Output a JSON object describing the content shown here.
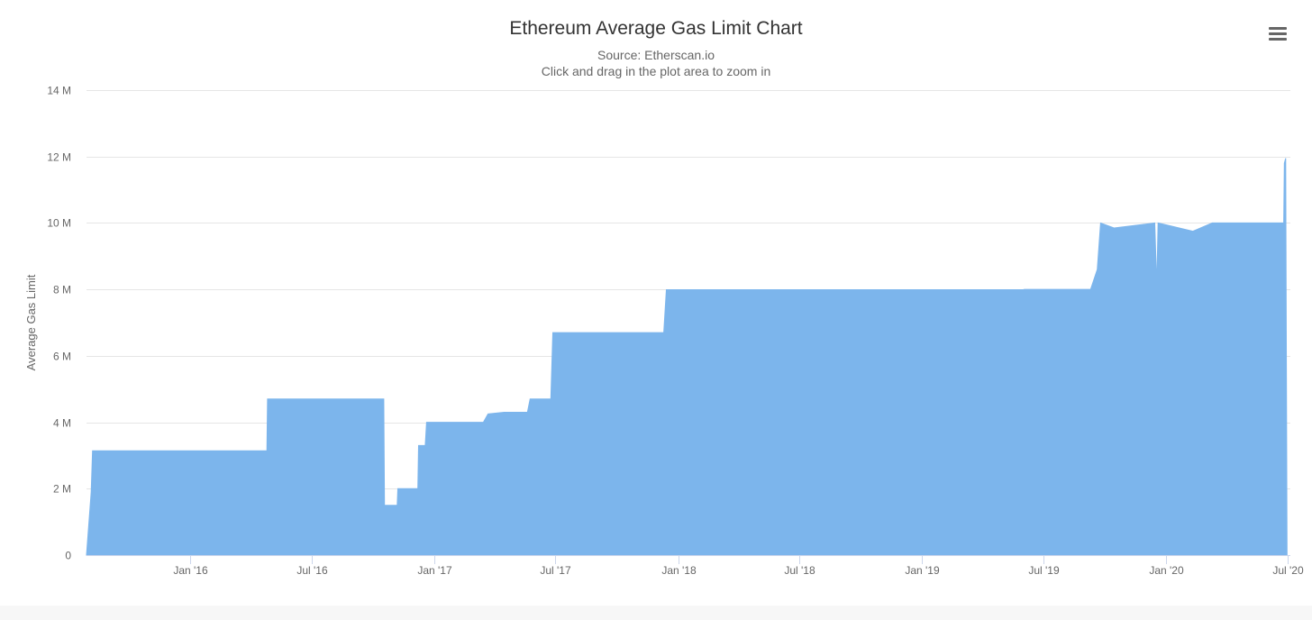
{
  "header": {
    "title": "Ethereum Average Gas Limit Chart",
    "subtitle_source": "Source: Etherscan.io",
    "subtitle_hint": "Click and drag in the plot area to zoom in",
    "menu_icon": "hamburger-menu-icon"
  },
  "colors": {
    "area_fill": "#7cb5ec",
    "grid": "#e6e6e6",
    "axis_line": "#ccd6eb",
    "text": "#666666",
    "title": "#333333"
  },
  "chart_data": {
    "type": "area",
    "title": "Ethereum Average Gas Limit Chart",
    "subtitle": "Source: Etherscan.io",
    "xlabel": "",
    "ylabel": "Average Gas Limit",
    "ylim": [
      0,
      14000000
    ],
    "xlim": [
      "2015-07-30",
      "2020-07-05"
    ],
    "grid": true,
    "legend": "none",
    "y_ticks": [
      {
        "value": 0,
        "label": "0"
      },
      {
        "value": 2000000,
        "label": "2 M"
      },
      {
        "value": 4000000,
        "label": "4 M"
      },
      {
        "value": 6000000,
        "label": "6 M"
      },
      {
        "value": 8000000,
        "label": "8 M"
      },
      {
        "value": 10000000,
        "label": "10 M"
      },
      {
        "value": 12000000,
        "label": "12 M"
      },
      {
        "value": 14000000,
        "label": "14 M"
      }
    ],
    "x_ticks": [
      {
        "date": "2016-01-01",
        "label": "Jan '16"
      },
      {
        "date": "2016-07-01",
        "label": "Jul '16"
      },
      {
        "date": "2017-01-01",
        "label": "Jan '17"
      },
      {
        "date": "2017-07-01",
        "label": "Jul '17"
      },
      {
        "date": "2018-01-01",
        "label": "Jan '18"
      },
      {
        "date": "2018-07-01",
        "label": "Jul '18"
      },
      {
        "date": "2019-01-01",
        "label": "Jan '19"
      },
      {
        "date": "2019-07-01",
        "label": "Jul '19"
      },
      {
        "date": "2020-01-01",
        "label": "Jan '20"
      },
      {
        "date": "2020-07-01",
        "label": "Jul '20"
      }
    ],
    "series": [
      {
        "points": [
          [
            "2015-07-30",
            5000
          ],
          [
            "2015-08-06",
            1900000
          ],
          [
            "2015-08-08",
            3140000
          ],
          [
            "2016-04-25",
            3140000
          ],
          [
            "2016-04-26",
            4700000
          ],
          [
            "2016-10-17",
            4700000
          ],
          [
            "2016-10-18",
            1500000
          ],
          [
            "2016-11-06",
            1500000
          ],
          [
            "2016-11-07",
            2000000
          ],
          [
            "2016-12-07",
            2000000
          ],
          [
            "2016-12-08",
            3300000
          ],
          [
            "2016-12-18",
            3300000
          ],
          [
            "2016-12-20",
            4000000
          ],
          [
            "2017-03-15",
            4000000
          ],
          [
            "2017-03-22",
            4250000
          ],
          [
            "2017-04-15",
            4300000
          ],
          [
            "2017-05-20",
            4300000
          ],
          [
            "2017-05-24",
            4700000
          ],
          [
            "2017-06-24",
            4700000
          ],
          [
            "2017-06-27",
            6700000
          ],
          [
            "2017-12-10",
            6700000
          ],
          [
            "2017-12-14",
            7990000
          ],
          [
            "2019-06-01",
            7990000
          ],
          [
            "2019-06-03",
            8000000
          ],
          [
            "2019-09-10",
            8000000
          ],
          [
            "2019-09-20",
            8600000
          ],
          [
            "2019-09-25",
            10000000
          ],
          [
            "2019-10-15",
            9850000
          ],
          [
            "2019-12-15",
            10000000
          ],
          [
            "2019-12-18",
            8100000
          ],
          [
            "2019-12-20",
            10000000
          ],
          [
            "2020-02-10",
            9750000
          ],
          [
            "2020-03-10",
            10000000
          ],
          [
            "2020-06-25",
            10000000
          ],
          [
            "2020-06-26",
            11800000
          ],
          [
            "2020-06-28",
            11950000
          ],
          [
            "2020-06-30",
            0
          ]
        ]
      }
    ]
  }
}
